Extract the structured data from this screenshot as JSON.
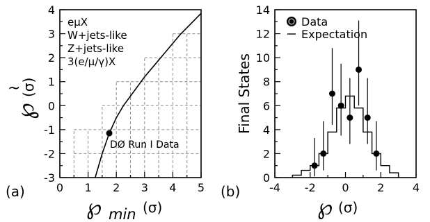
{
  "chart_data": [
    {
      "panel_label": "(a)",
      "type": "line",
      "xlim": [
        0,
        5
      ],
      "ylim": [
        -3,
        4
      ],
      "xticks": [
        "0",
        "1",
        "2",
        "3",
        "4",
        "5"
      ],
      "yticks": [
        "-3",
        "-2",
        "-1",
        "0",
        "1",
        "2",
        "3",
        "4"
      ],
      "xlabel_main": "℘",
      "xlabel_sub": "min",
      "xlabel_unit": "(σ)",
      "ylabel_main": "℘",
      "ylabel_unit": "(σ)",
      "legend": [
        "eμX",
        "W+jets-like",
        "Z+jets-like",
        "3(e/μ/γ)X"
      ],
      "annotation": "DØ Run I Data",
      "grid": "dashed grid on lower-right region",
      "curve": {
        "x": [
          1.25,
          1.5,
          1.75,
          2.0,
          2.25,
          2.5,
          2.75,
          3.0,
          3.25,
          3.5,
          3.75,
          4.0,
          4.25,
          4.5,
          4.75,
          5.0
        ],
        "y": [
          -3.0,
          -2.0,
          -1.15,
          -0.5,
          0.0,
          0.4,
          0.8,
          1.2,
          1.55,
          1.9,
          2.25,
          2.6,
          2.95,
          3.25,
          3.55,
          3.85
        ]
      },
      "marker": {
        "x": 1.75,
        "y": -1.15
      },
      "step_rows": [
        {
          "y": -3,
          "x_start": 0.5
        },
        {
          "y": -2,
          "x_start": 0.5
        },
        {
          "y": -1,
          "x_start": 0.5
        },
        {
          "y": 0,
          "x_start": 1.5
        },
        {
          "y": 1,
          "x_start": 2.0
        },
        {
          "y": 2,
          "x_start": 3.0
        },
        {
          "y": 3,
          "x_start": 4.0
        }
      ]
    },
    {
      "panel_label": "(b)",
      "type": "histogram",
      "xlim": [
        -4,
        4
      ],
      "ylim": [
        0,
        14
      ],
      "xticks": [
        "-4",
        "-2",
        "0",
        "2",
        "4"
      ],
      "yticks": [
        "0",
        "2",
        "4",
        "6",
        "8",
        "10",
        "12",
        "14"
      ],
      "xlabel_main": "℘",
      "xlabel_unit": "(σ)",
      "ylabel": "Final States",
      "legend": {
        "data": "Data",
        "expectation": "Expectation",
        "position": "top-left"
      },
      "expectation": {
        "edges": [
          -3.0,
          -2.5,
          -2.0,
          -1.5,
          -1.0,
          -0.5,
          0.0,
          0.5,
          1.0,
          1.5,
          2.0,
          2.5,
          3.0
        ],
        "values": [
          0.2,
          0.6,
          1.0,
          2.0,
          3.8,
          5.8,
          6.8,
          5.8,
          3.8,
          2.0,
          1.0,
          0.4
        ]
      },
      "data": {
        "x": [
          -1.75,
          -1.25,
          -0.75,
          -0.25,
          0.25,
          0.75,
          1.25,
          1.75
        ],
        "y": [
          1,
          2,
          7,
          6,
          5,
          9,
          5,
          2
        ],
        "err_low": [
          0.9,
          1.4,
          2.6,
          2.5,
          2.2,
          3.0,
          2.2,
          1.4
        ],
        "err_high": [
          2.3,
          2.7,
          3.8,
          3.5,
          3.3,
          4.1,
          3.3,
          2.7
        ]
      }
    }
  ]
}
